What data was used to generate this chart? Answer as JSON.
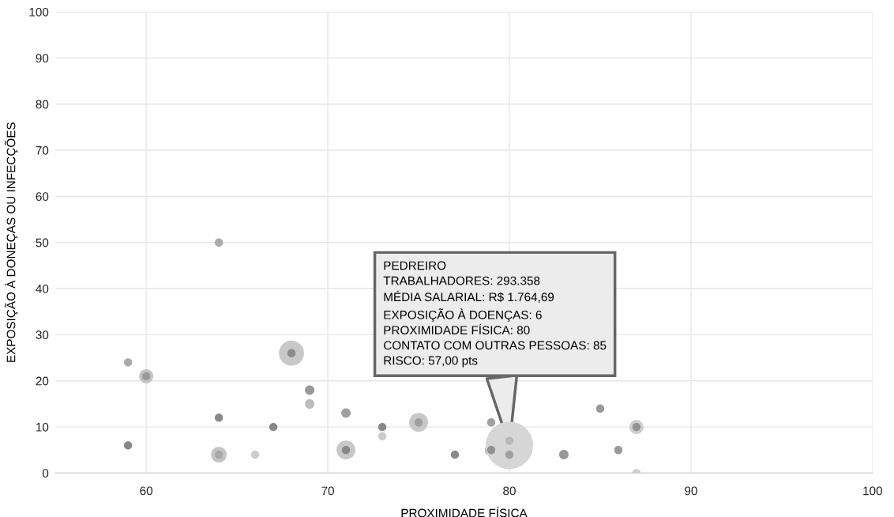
{
  "chart_data": {
    "type": "bubble",
    "xlabel": "PROXIMIDADE FÍSICA",
    "ylabel": "EXPOSIÇÃO À DONEÇAS OU INFECÇÕES",
    "x": [
      59,
      59,
      60,
      64,
      64,
      64,
      66,
      67,
      68,
      69,
      69,
      71,
      71,
      73,
      73,
      75,
      77,
      79,
      79,
      80,
      80,
      80,
      83,
      85,
      86,
      87,
      87,
      60,
      64,
      68,
      71,
      75,
      79,
      87
    ],
    "values": [
      24,
      6,
      21,
      50,
      12,
      4,
      4,
      10,
      26,
      18,
      15,
      13,
      5,
      10,
      8,
      11,
      4,
      11,
      5,
      6,
      7,
      4,
      4,
      14,
      5,
      10,
      0,
      21,
      4,
      26,
      5,
      11,
      5,
      10
    ],
    "sizes": [
      0.03,
      0.03,
      0.09,
      0.03,
      0.03,
      0.11,
      0.03,
      0.03,
      0.28,
      0.04,
      0.04,
      0.04,
      0.16,
      0.03,
      0.03,
      0.16,
      0.03,
      0.03,
      0.07,
      1,
      0.03,
      0.03,
      0.04,
      0.03,
      0.03,
      0.09,
      0.03,
      0.03,
      0.03,
      0.03,
      0.03,
      0.03,
      0.03,
      0.03
    ],
    "colors": [
      "#ababab",
      "#888888",
      "#c4c4c4",
      "#ababab",
      "#888888",
      "#c4c4c4",
      "#cccccc",
      "#888888",
      "#c8c8c8",
      "#999999",
      "#bbbbbb",
      "#a0a0a0",
      "#c8c8c8",
      "#888888",
      "#cccccc",
      "#c8c8c8",
      "#888888",
      "#a0a0a0",
      "#b0b0b0",
      "#d6d6d6",
      "#b8b8b8",
      "#a0a0a0",
      "#999999",
      "#999999",
      "#999999",
      "#cfcfcf",
      "#cccccc",
      "#999999",
      "#a8a8a8",
      "#8c8c8c",
      "#888888",
      "#a0a0a0",
      "#909090",
      "#939393"
    ],
    "xlim": [
      55,
      100
    ],
    "xticks": [
      60,
      70,
      80,
      90,
      100
    ],
    "ylim": [
      0,
      100
    ],
    "yticks": [
      0,
      10,
      20,
      30,
      40,
      50,
      60,
      70,
      80,
      90,
      100
    ],
    "grid": true,
    "annotations": [
      {
        "text": "PEDREIRO\nTRABALHADORES: 293.358\nMÉDIA SALARIAL: R$ 1.764,69\nEXPOSIÇÃO À DOENÇAS: 6\nPROXIMIDADE FÍSICA: 80\nCONTATO COM OUTRAS PESSOAS: 85\nRISCO: 57,00 pts",
        "x": 80,
        "y": 6
      }
    ]
  }
}
